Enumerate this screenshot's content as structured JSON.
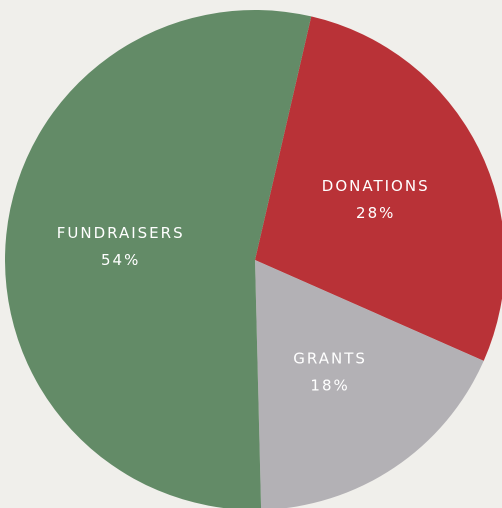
{
  "chart_data": {
    "type": "pie",
    "categories": [
      "DONATIONS",
      "GRANTS",
      "FUNDRAISERS"
    ],
    "values": [
      28,
      18,
      54
    ],
    "value_labels": [
      "28%",
      "18%",
      "54%"
    ],
    "colors": [
      "#b93237",
      "#b3b1b5",
      "#638b67"
    ]
  }
}
